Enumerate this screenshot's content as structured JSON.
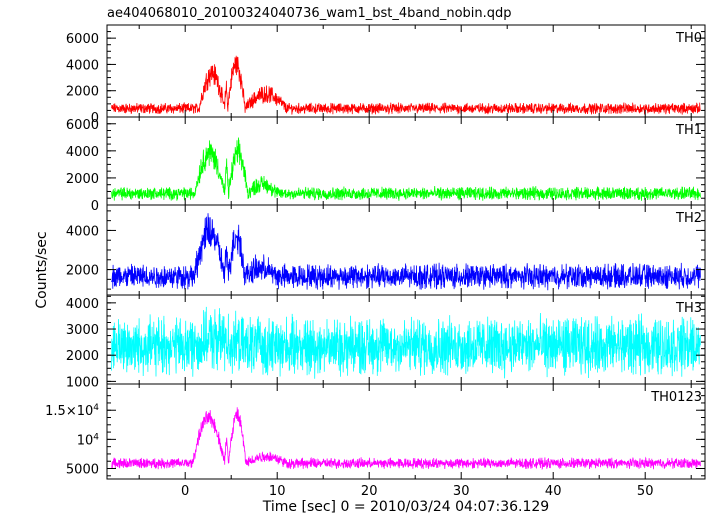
{
  "chart_data": {
    "type": "line",
    "title": "ae404068010_20100324040736_wam1_bst_4band_nobin.qdp",
    "xlabel": "Time [sec] 0 = 2010/03/24 04:07:36.129",
    "ylabel": "Counts/sec",
    "xlim": [
      -8.5,
      56.5
    ],
    "x_ticks": [
      0,
      10,
      20,
      30,
      40,
      50
    ],
    "x_tick_labels": [
      "0",
      "10",
      "20",
      "30",
      "40",
      "50"
    ],
    "grid": false,
    "panels": [
      {
        "name": "TH0",
        "color": "#ff0000",
        "ylim": [
          0,
          7000
        ],
        "y_ticks": [
          0,
          2000,
          4000,
          6000
        ],
        "y_tick_labels": [
          "0",
          "2000",
          "4000",
          "6000"
        ],
        "baseline": 650,
        "noise": 300,
        "burst": [
          {
            "t0": 1.5,
            "t1": 4.3,
            "amp": 2700
          },
          {
            "t0": 4.3,
            "t1": 4.6,
            "amp": 1600
          },
          {
            "t0": 4.6,
            "t1": 6.5,
            "amp": 3400
          },
          {
            "t0": 6.5,
            "t1": 11.0,
            "amp": 1100
          }
        ],
        "series": [
          {
            "name": "TH0",
            "x": [
              -8,
              1,
              2,
              3,
              4,
              4.5,
              5,
              5.5,
              6,
              8,
              10,
              15,
              56
            ],
            "y": [
              650,
              1500,
              3300,
              3600,
              3300,
              2200,
              4800,
              4600,
              3500,
              1800,
              1300,
              950,
              700
            ]
          }
        ]
      },
      {
        "name": "TH1",
        "color": "#00ff00",
        "ylim": [
          0,
          6500
        ],
        "y_ticks": [
          0,
          2000,
          4000,
          6000
        ],
        "y_tick_labels": [
          "0",
          "2000",
          "4000",
          "6000"
        ],
        "baseline": 850,
        "noise": 350,
        "burst": [
          {
            "t0": 1.0,
            "t1": 4.3,
            "amp": 3000
          },
          {
            "t0": 4.3,
            "t1": 4.7,
            "amp": 1800
          },
          {
            "t0": 4.7,
            "t1": 6.8,
            "amp": 3000
          },
          {
            "t0": 6.8,
            "t1": 10.0,
            "amp": 700
          }
        ],
        "series": [
          {
            "name": "TH1",
            "x": [
              -8,
              1,
              2,
              3,
              4,
              4.5,
              5,
              5.5,
              6,
              8,
              10,
              56
            ],
            "y": [
              850,
              2000,
              4000,
              3900,
              3700,
              2600,
              3900,
              4000,
              3000,
              1300,
              1000,
              800
            ]
          }
        ]
      },
      {
        "name": "TH2",
        "color": "#0000ff",
        "ylim": [
          700,
          5300
        ],
        "y_ticks": [
          2000,
          4000
        ],
        "y_tick_labels": [
          "2000",
          "4000"
        ],
        "baseline": 1650,
        "noise": 450,
        "burst": [
          {
            "t0": 1.0,
            "t1": 4.3,
            "amp": 2300
          },
          {
            "t0": 4.3,
            "t1": 4.7,
            "amp": 1200
          },
          {
            "t0": 4.7,
            "t1": 6.5,
            "amp": 2100
          },
          {
            "t0": 6.5,
            "t1": 10.0,
            "amp": 400
          }
        ],
        "series": [
          {
            "name": "TH2",
            "x": [
              -8,
              1,
              2,
              3,
              4,
              4.5,
              5,
              5.5,
              6,
              8,
              10,
              56
            ],
            "y": [
              1650,
              3000,
              3900,
              3700,
              3300,
              2600,
              3600,
              3500,
              2700,
              2000,
              1700,
              1650
            ]
          }
        ]
      },
      {
        "name": "TH3",
        "color": "#00ffff",
        "ylim": [
          900,
          4300
        ],
        "y_ticks": [
          1000,
          2000,
          3000,
          4000
        ],
        "y_tick_labels": [
          "1000",
          "2000",
          "3000",
          "4000"
        ],
        "baseline": 2350,
        "noise": 800,
        "burst": [
          {
            "t0": 1.0,
            "t1": 6.0,
            "amp": 250
          }
        ],
        "series": [
          {
            "name": "TH3",
            "x": [
              -8,
              2,
              5,
              56
            ],
            "y": [
              2350,
              2600,
              2500,
              2350
            ]
          }
        ]
      },
      {
        "name": "TH0123",
        "color": "#ff00ff",
        "ylim": [
          3200,
          19500
        ],
        "y_ticks": [
          5000,
          10000,
          15000
        ],
        "y_tick_labels": [
          "5000",
          "10^4",
          "1.5×10^4"
        ],
        "baseline": 5900,
        "noise": 650,
        "burst": [
          {
            "t0": 0.8,
            "t1": 4.3,
            "amp": 7800
          },
          {
            "t0": 4.3,
            "t1": 4.7,
            "amp": 4000
          },
          {
            "t0": 4.7,
            "t1": 6.6,
            "amp": 8200
          },
          {
            "t0": 6.6,
            "t1": 11.0,
            "amp": 1200
          }
        ],
        "series": [
          {
            "name": "TH0123",
            "x": [
              -8,
              1,
              2,
              3,
              4,
              4.5,
              5,
              5.5,
              6,
              8,
              10,
              56
            ],
            "y": [
              5900,
              10000,
              14000,
              13500,
              12500,
              9500,
              14500,
              14000,
              11000,
              7500,
              7000,
              5900
            ]
          }
        ]
      }
    ]
  }
}
